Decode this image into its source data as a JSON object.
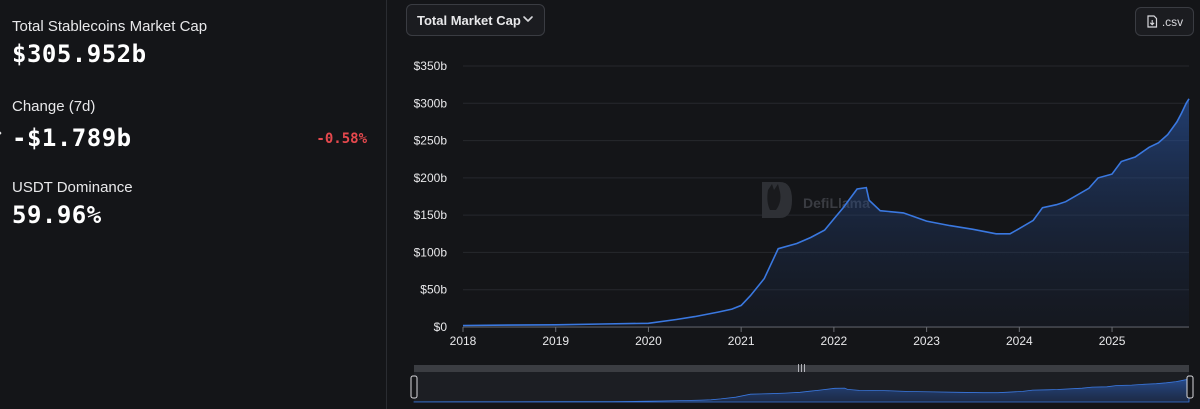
{
  "stats": {
    "market_cap": {
      "label": "Total Stablecoins Market Cap",
      "value": "$305.952b"
    },
    "change": {
      "label": "Change (7d)",
      "value": "-$1.789b",
      "percent": "-0.58%"
    },
    "dominance": {
      "label": "USDT Dominance",
      "value": "59.96%"
    }
  },
  "toolbar": {
    "dropdown_label": "Total Market Cap",
    "csv_label": ".csv"
  },
  "watermark": "DefiLlama",
  "colors": {
    "background": "#141518",
    "line": "#3a78e0",
    "negative": "#e5484d",
    "text": "#e8e8ea"
  },
  "chart_data": {
    "type": "area",
    "ylim": [
      0,
      350
    ],
    "yticks": [
      0,
      50,
      100,
      150,
      200,
      250,
      300,
      350
    ],
    "ytick_labels": [
      "$0",
      "$50b",
      "$100b",
      "$150b",
      "$200b",
      "$250b",
      "$300b",
      "$350b"
    ],
    "xlim": [
      2018.0,
      2025.83
    ],
    "xticks": [
      2018,
      2019,
      2020,
      2021,
      2022,
      2023,
      2024,
      2025
    ],
    "xtick_labels": [
      "2018",
      "2019",
      "2020",
      "2021",
      "2022",
      "2023",
      "2024",
      "2025"
    ],
    "x": [
      2018.0,
      2018.5,
      2019.0,
      2019.5,
      2020.0,
      2020.3,
      2020.5,
      2020.75,
      2020.9,
      2021.0,
      2021.1,
      2021.25,
      2021.4,
      2021.6,
      2021.75,
      2021.9,
      2022.0,
      2022.1,
      2022.25,
      2022.35,
      2022.38,
      2022.5,
      2022.75,
      2023.0,
      2023.25,
      2023.5,
      2023.75,
      2023.9,
      2024.0,
      2024.15,
      2024.25,
      2024.4,
      2024.5,
      2024.75,
      2024.85,
      2025.0,
      2025.1,
      2025.25,
      2025.4,
      2025.5,
      2025.6,
      2025.7,
      2025.75,
      2025.8,
      2025.83
    ],
    "y": [
      2,
      2.5,
      3,
      4,
      5,
      10,
      14,
      20,
      24,
      29,
      42,
      65,
      105,
      112,
      120,
      130,
      145,
      160,
      185,
      187,
      170,
      156,
      153,
      142,
      136,
      131,
      125,
      125,
      132,
      143,
      160,
      164,
      168,
      186,
      200,
      205,
      222,
      228,
      241,
      247,
      258,
      275,
      287,
      300,
      306
    ],
    "grid": true,
    "legend": "none"
  }
}
